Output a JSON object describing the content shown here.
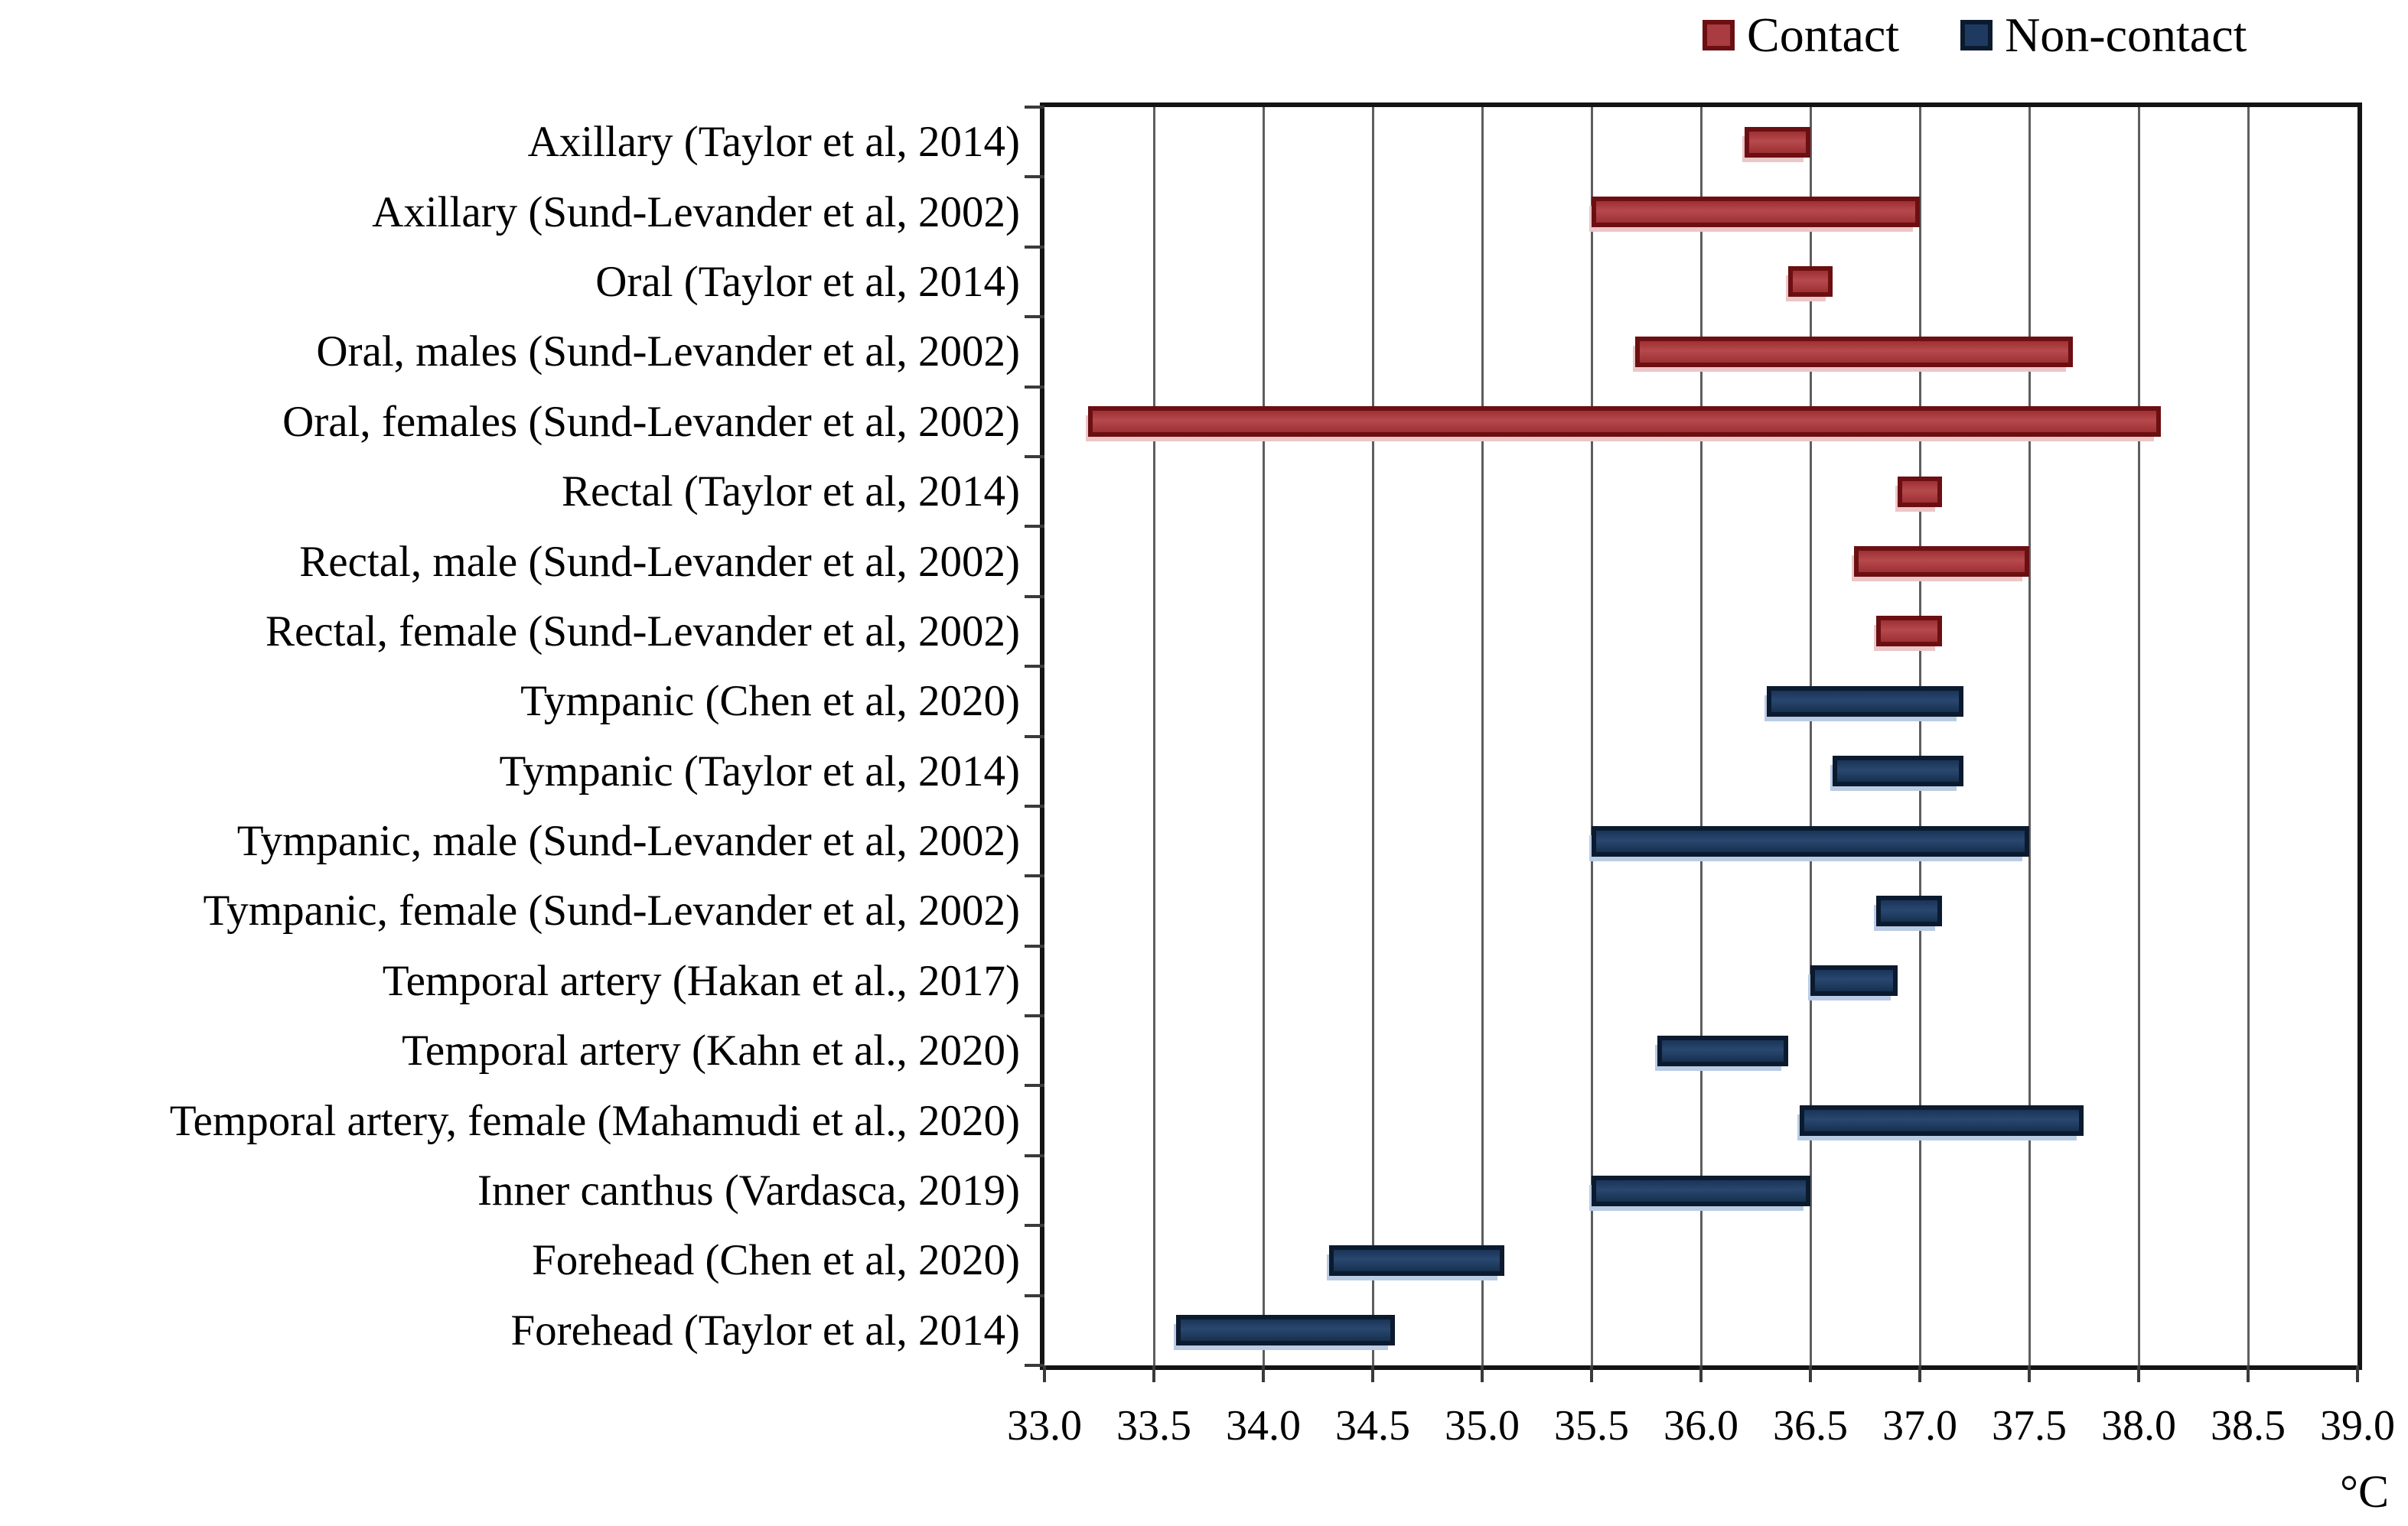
{
  "legend": {
    "items": [
      {
        "label": "Contact",
        "color": "#a83c40",
        "border_color": "#6b0f12"
      },
      {
        "label": "Non-contact",
        "color": "#1e3a61",
        "border_color": "#0b1a2e"
      }
    ]
  },
  "axis": {
    "unit_label": "°C"
  },
  "chart_data": {
    "type": "bar",
    "subtype": "horizontal-range-bars",
    "title": "",
    "xlabel": "°C",
    "ylabel": "",
    "xlim": [
      33.0,
      39.0
    ],
    "xtick_step": 0.5,
    "xtick_labels": [
      "33.0",
      "33.5",
      "34.0",
      "34.5",
      "35.0",
      "35.5",
      "36.0",
      "36.5",
      "37.0",
      "37.5",
      "38.0",
      "38.5",
      "39.0"
    ],
    "grid": true,
    "legend_position": "top-right",
    "series": [
      {
        "name": "Contact",
        "color": "#a83c40"
      },
      {
        "name": "Non-contact",
        "color": "#1e3a61"
      }
    ],
    "rows": [
      {
        "label": "Axillary (Taylor et al, 2014)",
        "series": "Contact",
        "range": [
          36.2,
          36.5
        ]
      },
      {
        "label": "Axillary (Sund-Levander et al, 2002)",
        "series": "Contact",
        "range": [
          35.5,
          37.0
        ]
      },
      {
        "label": "Oral (Taylor et al, 2014)",
        "series": "Contact",
        "range": [
          36.4,
          36.6
        ]
      },
      {
        "label": "Oral, males (Sund-Levander et al, 2002)",
        "series": "Contact",
        "range": [
          35.7,
          37.7
        ]
      },
      {
        "label": "Oral, females (Sund-Levander et al, 2002)",
        "series": "Contact",
        "range": [
          33.2,
          38.1
        ]
      },
      {
        "label": "Rectal (Taylor et al, 2014)",
        "series": "Contact",
        "range": [
          36.9,
          37.1
        ]
      },
      {
        "label": "Rectal, male (Sund-Levander et al, 2002)",
        "series": "Contact",
        "range": [
          36.7,
          37.5
        ]
      },
      {
        "label": "Rectal, female (Sund-Levander et al, 2002)",
        "series": "Contact",
        "range": [
          36.8,
          37.1
        ]
      },
      {
        "label": "Tympanic (Chen et al, 2020)",
        "series": "Non-contact",
        "range": [
          36.3,
          37.2
        ]
      },
      {
        "label": "Tympanic (Taylor et al, 2014)",
        "series": "Non-contact",
        "range": [
          36.6,
          37.2
        ]
      },
      {
        "label": "Tympanic, male (Sund-Levander et al, 2002)",
        "series": "Non-contact",
        "range": [
          35.5,
          37.5
        ]
      },
      {
        "label": "Tympanic, female (Sund-Levander et al, 2002)",
        "series": "Non-contact",
        "range": [
          36.8,
          37.1
        ]
      },
      {
        "label": "Temporal artery (Hakan et al., 2017)",
        "series": "Non-contact",
        "range": [
          36.5,
          36.9
        ]
      },
      {
        "label": "Temporal artery (Kahn et al., 2020)",
        "series": "Non-contact",
        "range": [
          35.8,
          36.4
        ]
      },
      {
        "label": "Temporal artery, female  (Mahamudi et al., 2020)",
        "series": "Non-contact",
        "range": [
          36.45,
          37.75
        ]
      },
      {
        "label": "Inner canthus (Vardasca, 2019)",
        "series": "Non-contact",
        "range": [
          35.5,
          36.5
        ]
      },
      {
        "label": "Forehead (Chen et al, 2020)",
        "series": "Non-contact",
        "range": [
          34.3,
          35.1
        ]
      },
      {
        "label": "Forehead (Taylor et al, 2014)",
        "series": "Non-contact",
        "range": [
          33.6,
          34.6
        ]
      }
    ]
  },
  "colors": {
    "gridline": "#5e5e5e",
    "plot_border": "#141414",
    "text": "#000000",
    "background": "#ffffff"
  }
}
